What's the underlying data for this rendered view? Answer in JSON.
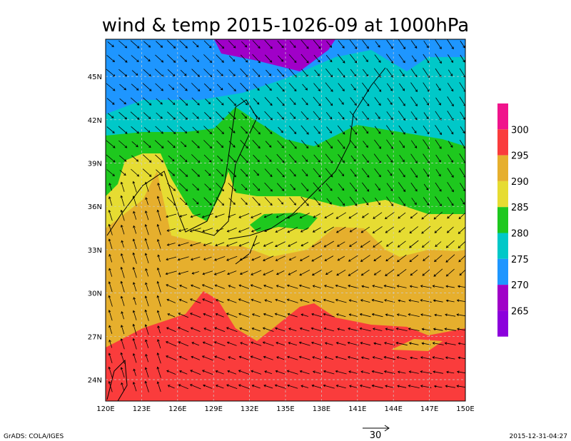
{
  "title": "wind & temp 2015-1026-09 at 1000hPa",
  "map": {
    "lon_labels": [
      "120E",
      "123E",
      "126E",
      "129E",
      "132E",
      "135E",
      "138E",
      "141E",
      "144E",
      "147E",
      "150E"
    ],
    "lat_labels": [
      "24N",
      "27N",
      "30N",
      "33N",
      "36N",
      "39N",
      "42N",
      "45N"
    ]
  },
  "colorbar": {
    "levels": [
      300,
      295,
      290,
      285,
      280,
      275,
      270,
      265
    ],
    "colors": [
      "#f0148c",
      "#fa3c3c",
      "#e6af2d",
      "#e6dc32",
      "#1ec81e",
      "#00c8c8",
      "#1e96ff",
      "#a000c8",
      "#8c00dc"
    ]
  },
  "vector_scale": "30",
  "footer": {
    "left": "GrADS: COLA/IGES",
    "right": "2015-12-31-04:27"
  }
}
